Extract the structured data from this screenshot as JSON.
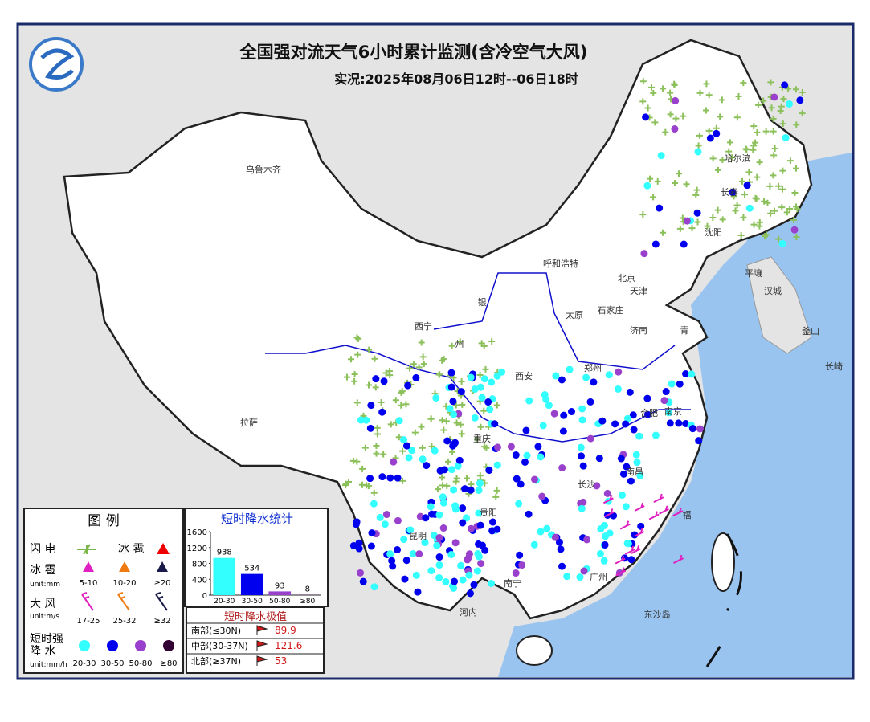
{
  "header": {
    "title": "全国强对流天气6小时累计监测(含冷空气大风)",
    "subtitle": "实况:2025年08月06日12时--06日18时"
  },
  "map_labels": [
    "乌鲁木齐",
    "拉萨",
    "西宁",
    "州",
    "银",
    "呼和浩特",
    "北京",
    "天津",
    "太原",
    "石家庄",
    "济南",
    "郑州",
    "西安",
    "合肥",
    "南京",
    "重庆",
    "贵阳",
    "长沙",
    "南昌",
    "福",
    "广州",
    "南宁",
    "昆明",
    "哈尔滨",
    "长春",
    "沈阳",
    "平壤",
    "汉城",
    "釜山",
    "长崎",
    "河内",
    "东沙岛",
    "青"
  ],
  "legend": {
    "title": "图 例",
    "lightning": "闪 电",
    "hail": "冰 雹",
    "hail_size": "冰 雹",
    "hail_unit": "unit:mm",
    "hail_levels": [
      "5-10",
      "10-20",
      "≥20"
    ],
    "wind": "大 风",
    "wind_unit": "unit:m/s",
    "wind_levels": [
      "17-25",
      "25-32",
      "≥32"
    ],
    "rain": "短时强",
    "rain2": "降 水",
    "rain_unit": "unit:mm/h",
    "rain_levels": [
      "20-30",
      "30-50",
      "50-80",
      "≥80"
    ]
  },
  "chart_data": {
    "type": "bar",
    "title": "短时降水统计",
    "categories": [
      "20-30",
      "30-50",
      "50-80",
      "≥80"
    ],
    "values": [
      938,
      534,
      93,
      8
    ],
    "colors": [
      "#33ffff",
      "#0000ee",
      "#9940cc",
      "#330033"
    ],
    "ylim": [
      0,
      1600
    ],
    "yticks": [
      0,
      400,
      800,
      1200,
      1600
    ]
  },
  "extremes": {
    "title": "短时降水极值",
    "rows": [
      [
        "南部(≤30N)",
        "89.9"
      ],
      [
        "中部(30-37N)",
        "121.6"
      ],
      [
        "北部(≥37N)",
        "53"
      ]
    ]
  }
}
